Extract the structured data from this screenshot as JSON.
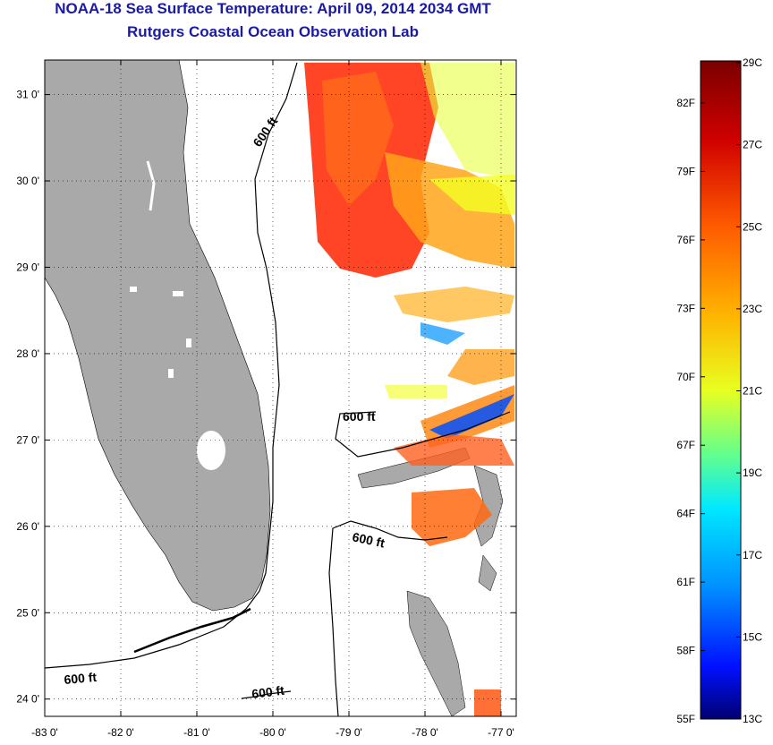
{
  "title": "NOAA-18 Sea Surface Temperature:  April 09, 2014 2034 GMT",
  "subtitle": "Rutgers Coastal Ocean Observation Lab",
  "map": {
    "lon_range": [
      -83.0,
      -76.8
    ],
    "lat_range": [
      23.8,
      31.4
    ],
    "lon_ticks": [
      {
        "value": -83,
        "label": "-83 0'"
      },
      {
        "value": -82,
        "label": "-82 0'"
      },
      {
        "value": -81,
        "label": "-81 0'"
      },
      {
        "value": -80,
        "label": "-80 0'"
      },
      {
        "value": -79,
        "label": "-79 0'"
      },
      {
        "value": -78,
        "label": "-78 0'"
      },
      {
        "value": -77,
        "label": "-77 0'"
      }
    ],
    "lat_ticks": [
      {
        "value": 24,
        "label": "24 0'"
      },
      {
        "value": 25,
        "label": "25 0'"
      },
      {
        "value": 26,
        "label": "26 0'"
      },
      {
        "value": 27,
        "label": "27 0'"
      },
      {
        "value": 28,
        "label": "28 0'"
      },
      {
        "value": 29,
        "label": "29 0'"
      },
      {
        "value": 30,
        "label": "30 0'"
      },
      {
        "value": 31,
        "label": "31 0'"
      }
    ],
    "contour_label": "600 ft",
    "land_color": "#a9a9a9"
  },
  "colorbar": {
    "fahrenheit_labels": [
      "82F",
      "79F",
      "76F",
      "73F",
      "70F",
      "67F",
      "64F",
      "61F",
      "58F",
      "55F"
    ],
    "celsius_labels": [
      "29C",
      "27C",
      "25C",
      "23C",
      "21C",
      "19C",
      "17C",
      "15C",
      "13C"
    ],
    "colors": [
      "#800000",
      "#ff0000",
      "#ff8000",
      "#ffff00",
      "#80ff80",
      "#00ffff",
      "#0080ff",
      "#0000ff",
      "#000080"
    ]
  }
}
